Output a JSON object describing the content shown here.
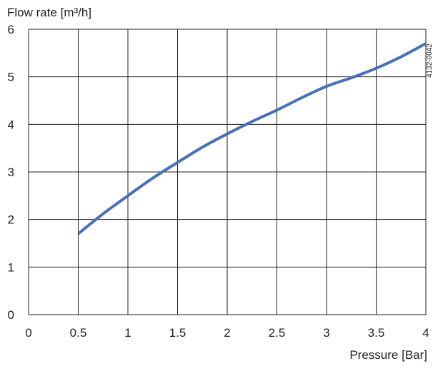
{
  "chart_data": {
    "type": "line",
    "title": "",
    "ylabel": "Flow rate [m³/h]",
    "xlabel": "Pressure [Bar]",
    "code": "4132-0042",
    "xlim": [
      0,
      4
    ],
    "ylim": [
      0,
      6
    ],
    "x_ticks": [
      "0",
      "0.5",
      "1",
      "1.5",
      "2",
      "2.5",
      "3",
      "3.5",
      "4"
    ],
    "y_ticks": [
      "0",
      "1",
      "2",
      "3",
      "4",
      "5",
      "6"
    ],
    "grid": true,
    "series": [
      {
        "color": "#4a6fb5",
        "x": [
          0.5,
          0.75,
          1.0,
          1.25,
          1.5,
          1.75,
          2.0,
          2.25,
          2.5,
          2.75,
          3.0,
          3.25,
          3.5,
          3.75,
          4.0
        ],
        "y": [
          1.7,
          2.12,
          2.5,
          2.87,
          3.2,
          3.52,
          3.8,
          4.06,
          4.3,
          4.56,
          4.8,
          4.98,
          5.18,
          5.42,
          5.7
        ]
      }
    ]
  }
}
